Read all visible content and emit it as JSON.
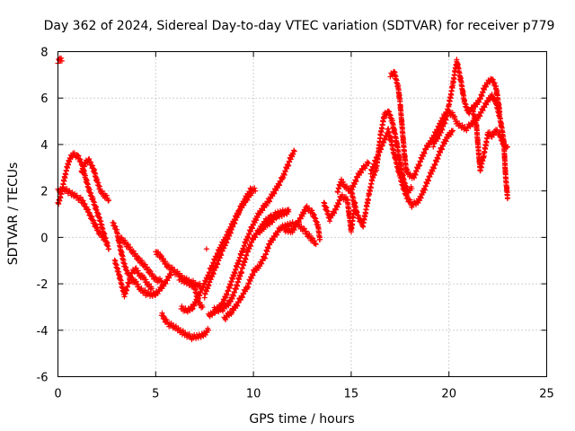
{
  "chart_data": {
    "type": "scatter",
    "title": "Day 362 of 2024, Sidereal Day-to-day VTEC variation (SDTVAR) for receiver p779",
    "xlabel": "GPS time / hours",
    "ylabel": "SDTVAR / TECUs",
    "xlim": [
      0,
      25
    ],
    "ylim": [
      -6,
      8
    ],
    "xticks": [
      "0",
      "5",
      "10",
      "15",
      "20",
      "25"
    ],
    "yticks": [
      "-6",
      "-4",
      "-2",
      "0",
      "2",
      "4",
      "6",
      "8"
    ],
    "grid": true,
    "marker": "+",
    "color": "#ff0000",
    "series": [
      {
        "name": "trace-1",
        "points": [
          [
            0.0,
            7.6
          ],
          [
            0.1,
            7.7
          ],
          [
            0.2,
            7.6
          ]
        ]
      },
      {
        "name": "trace-2",
        "points": [
          [
            0.0,
            1.4
          ],
          [
            0.2,
            2.0
          ],
          [
            0.4,
            2.8
          ],
          [
            0.6,
            3.4
          ],
          [
            0.8,
            3.6
          ],
          [
            1.0,
            3.5
          ],
          [
            1.2,
            3.2
          ],
          [
            1.4,
            2.6
          ],
          [
            1.6,
            2.0
          ],
          [
            1.8,
            1.6
          ],
          [
            2.0,
            1.1
          ],
          [
            2.2,
            0.6
          ],
          [
            2.4,
            0.0
          ],
          [
            2.6,
            -0.5
          ]
        ]
      },
      {
        "name": "trace-3",
        "points": [
          [
            0.0,
            2.0
          ],
          [
            0.3,
            2.1
          ],
          [
            0.6,
            1.9
          ],
          [
            0.9,
            1.8
          ],
          [
            1.2,
            1.6
          ],
          [
            1.5,
            1.2
          ],
          [
            1.8,
            0.7
          ],
          [
            2.1,
            0.2
          ],
          [
            2.4,
            -0.1
          ]
        ]
      },
      {
        "name": "trace-4",
        "points": [
          [
            1.2,
            2.8
          ],
          [
            1.4,
            3.2
          ],
          [
            1.6,
            3.3
          ],
          [
            1.8,
            3.0
          ],
          [
            2.0,
            2.4
          ],
          [
            2.2,
            2.0
          ],
          [
            2.4,
            1.8
          ],
          [
            2.6,
            1.6
          ]
        ]
      },
      {
        "name": "trace-5",
        "points": [
          [
            2.8,
            0.6
          ],
          [
            3.0,
            0.3
          ],
          [
            3.2,
            -0.5
          ],
          [
            3.4,
            -1.2
          ],
          [
            3.6,
            -1.6
          ],
          [
            3.8,
            -1.8
          ],
          [
            4.0,
            -2.0
          ],
          [
            4.2,
            -2.2
          ],
          [
            4.5,
            -2.4
          ],
          [
            4.8,
            -2.5
          ],
          [
            5.0,
            -2.4
          ],
          [
            5.3,
            -2.2
          ],
          [
            5.6,
            -1.8
          ],
          [
            5.8,
            -1.5
          ]
        ]
      },
      {
        "name": "trace-6",
        "points": [
          [
            2.9,
            -1.0
          ],
          [
            3.1,
            -1.5
          ],
          [
            3.3,
            -2.2
          ],
          [
            3.4,
            -2.5
          ],
          [
            3.6,
            -2.0
          ],
          [
            3.8,
            -1.5
          ],
          [
            4.0,
            -1.4
          ],
          [
            4.2,
            -1.6
          ],
          [
            4.4,
            -1.8
          ],
          [
            4.6,
            -2.0
          ],
          [
            4.8,
            -2.2
          ]
        ]
      },
      {
        "name": "trace-7",
        "points": [
          [
            3.2,
            0.0
          ],
          [
            3.5,
            -0.3
          ],
          [
            3.8,
            -0.6
          ],
          [
            4.1,
            -0.9
          ],
          [
            4.4,
            -1.2
          ],
          [
            4.7,
            -1.5
          ],
          [
            5.0,
            -1.8
          ],
          [
            5.3,
            -1.9
          ]
        ]
      },
      {
        "name": "trace-8",
        "points": [
          [
            5.0,
            -0.6
          ],
          [
            5.3,
            -0.9
          ],
          [
            5.6,
            -1.2
          ],
          [
            6.0,
            -1.5
          ],
          [
            6.5,
            -1.8
          ],
          [
            7.0,
            -2.0
          ],
          [
            7.3,
            -2.1
          ]
        ]
      },
      {
        "name": "trace-9",
        "points": [
          [
            6.2,
            -1.8
          ],
          [
            6.5,
            -1.9
          ],
          [
            6.8,
            -2.0
          ],
          [
            7.0,
            -2.2
          ],
          [
            7.2,
            -2.8
          ],
          [
            7.4,
            -3.0
          ]
        ]
      },
      {
        "name": "trace-10",
        "points": [
          [
            5.3,
            -3.3
          ],
          [
            5.6,
            -3.7
          ],
          [
            6.0,
            -3.9
          ],
          [
            6.4,
            -4.1
          ],
          [
            6.8,
            -4.3
          ],
          [
            7.1,
            -4.3
          ],
          [
            7.4,
            -4.2
          ],
          [
            7.7,
            -4.0
          ]
        ]
      },
      {
        "name": "trace-11",
        "points": [
          [
            6.3,
            -3.0
          ],
          [
            6.6,
            -3.2
          ],
          [
            6.9,
            -3.0
          ],
          [
            7.2,
            -2.5
          ],
          [
            7.5,
            -2.0
          ],
          [
            7.8,
            -1.4
          ],
          [
            8.1,
            -0.8
          ],
          [
            8.4,
            -0.3
          ],
          [
            8.7,
            0.2
          ],
          [
            9.0,
            0.7
          ],
          [
            9.3,
            1.2
          ],
          [
            9.6,
            1.6
          ],
          [
            9.9,
            1.9
          ]
        ]
      },
      {
        "name": "trace-12",
        "points": [
          [
            7.5,
            -2.5
          ],
          [
            7.8,
            -1.8
          ],
          [
            8.1,
            -1.2
          ],
          [
            8.4,
            -0.6
          ],
          [
            8.7,
            0.0
          ],
          [
            9.0,
            0.6
          ],
          [
            9.3,
            1.2
          ],
          [
            9.6,
            1.7
          ],
          [
            9.9,
            2.1
          ],
          [
            10.1,
            2.0
          ]
        ]
      },
      {
        "name": "trace-13",
        "points": [
          [
            7.7,
            -3.4
          ],
          [
            8.0,
            -3.2
          ],
          [
            8.4,
            -2.9
          ],
          [
            8.7,
            -2.3
          ],
          [
            9.0,
            -1.6
          ],
          [
            9.3,
            -0.9
          ],
          [
            9.6,
            -0.2
          ],
          [
            9.9,
            0.4
          ],
          [
            10.2,
            0.9
          ],
          [
            10.5,
            1.3
          ],
          [
            10.8,
            1.6
          ],
          [
            11.1,
            2.0
          ],
          [
            11.5,
            2.6
          ],
          [
            11.8,
            3.2
          ],
          [
            12.0,
            3.6
          ],
          [
            12.1,
            3.7
          ]
        ]
      },
      {
        "name": "trace-14",
        "points": [
          [
            8.0,
            -3.1
          ],
          [
            8.4,
            -3.1
          ],
          [
            8.8,
            -2.8
          ],
          [
            9.1,
            -2.2
          ],
          [
            9.4,
            -1.4
          ],
          [
            9.7,
            -0.6
          ],
          [
            10.0,
            0.0
          ],
          [
            10.3,
            0.3
          ],
          [
            10.6,
            0.7
          ],
          [
            10.9,
            0.9
          ],
          [
            11.2,
            1.0
          ],
          [
            11.5,
            1.1
          ],
          [
            11.8,
            1.1
          ]
        ]
      },
      {
        "name": "trace-15",
        "points": [
          [
            8.5,
            -3.5
          ],
          [
            8.9,
            -3.2
          ],
          [
            9.3,
            -2.7
          ],
          [
            9.7,
            -2.1
          ],
          [
            10.0,
            -1.5
          ],
          [
            10.3,
            -1.2
          ],
          [
            10.6,
            -0.8
          ],
          [
            10.8,
            -0.3
          ],
          [
            11.1,
            0.1
          ],
          [
            11.4,
            0.4
          ],
          [
            11.7,
            0.5
          ],
          [
            12.0,
            0.6
          ],
          [
            12.3,
            0.5
          ],
          [
            12.6,
            0.3
          ],
          [
            12.9,
            0.0
          ],
          [
            13.2,
            -0.3
          ]
        ]
      },
      {
        "name": "trace-16",
        "points": [
          [
            10.3,
            0.2
          ],
          [
            10.6,
            0.5
          ],
          [
            10.9,
            0.7
          ],
          [
            11.2,
            0.9
          ],
          [
            11.5,
            1.0
          ],
          [
            11.8,
            1.2
          ]
        ]
      },
      {
        "name": "trace-17",
        "points": [
          [
            11.6,
            0.3
          ],
          [
            12.0,
            0.3
          ],
          [
            12.4,
            0.8
          ],
          [
            12.7,
            1.3
          ],
          [
            13.0,
            1.1
          ],
          [
            13.3,
            0.5
          ],
          [
            13.4,
            -0.1
          ]
        ]
      },
      {
        "name": "trace-18",
        "points": [
          [
            13.6,
            1.5
          ],
          [
            13.9,
            0.8
          ],
          [
            14.2,
            1.2
          ],
          [
            14.5,
            1.8
          ],
          [
            14.8,
            1.6
          ],
          [
            15.0,
            0.3
          ],
          [
            15.2,
            1.5
          ]
        ]
      },
      {
        "name": "trace-19",
        "points": [
          [
            14.3,
            2.0
          ],
          [
            14.5,
            2.4
          ],
          [
            14.7,
            2.2
          ],
          [
            15.0,
            2.0
          ],
          [
            15.3,
            2.6
          ],
          [
            15.6,
            3.0
          ],
          [
            15.9,
            3.2
          ]
        ]
      },
      {
        "name": "trace-20",
        "points": [
          [
            15.0,
            2.0
          ],
          [
            15.3,
            1.0
          ],
          [
            15.6,
            0.5
          ],
          [
            15.9,
            1.8
          ],
          [
            16.1,
            2.6
          ],
          [
            16.3,
            3.0
          ],
          [
            16.5,
            4.4
          ],
          [
            16.7,
            5.3
          ],
          [
            16.9,
            5.4
          ],
          [
            17.1,
            5.0
          ],
          [
            17.3,
            4.2
          ],
          [
            17.5,
            3.2
          ],
          [
            17.7,
            2.4
          ],
          [
            17.9,
            2.0
          ],
          [
            18.1,
            2.1
          ]
        ]
      },
      {
        "name": "trace-21",
        "points": [
          [
            16.0,
            2.8
          ],
          [
            16.3,
            3.4
          ],
          [
            16.6,
            4.0
          ],
          [
            16.9,
            4.6
          ],
          [
            17.2,
            3.6
          ],
          [
            17.5,
            2.6
          ],
          [
            17.8,
            1.8
          ],
          [
            18.1,
            1.4
          ],
          [
            18.4,
            1.5
          ],
          [
            18.7,
            2.0
          ],
          [
            19.0,
            2.6
          ],
          [
            19.3,
            3.2
          ],
          [
            19.6,
            3.8
          ],
          [
            19.9,
            4.3
          ],
          [
            20.2,
            4.6
          ]
        ]
      },
      {
        "name": "trace-22",
        "points": [
          [
            17.0,
            7.0
          ],
          [
            17.2,
            7.1
          ],
          [
            17.4,
            6.5
          ],
          [
            17.5,
            5.8
          ],
          [
            17.6,
            4.8
          ],
          [
            17.7,
            3.8
          ],
          [
            17.8,
            3.0
          ],
          [
            17.9,
            2.7
          ],
          [
            18.2,
            2.6
          ],
          [
            18.5,
            3.2
          ],
          [
            18.8,
            3.8
          ],
          [
            19.1,
            4.2
          ],
          [
            19.4,
            4.6
          ],
          [
            19.7,
            5.2
          ],
          [
            20.0,
            5.4
          ],
          [
            20.3,
            5.2
          ]
        ]
      },
      {
        "name": "trace-23",
        "points": [
          [
            19.2,
            4.0
          ],
          [
            19.5,
            4.4
          ],
          [
            19.8,
            5.0
          ],
          [
            20.0,
            5.7
          ],
          [
            20.2,
            6.6
          ],
          [
            20.4,
            7.6
          ],
          [
            20.6,
            6.8
          ],
          [
            20.8,
            5.8
          ],
          [
            21.0,
            5.4
          ],
          [
            21.3,
            5.6
          ],
          [
            21.6,
            6.0
          ],
          [
            21.9,
            6.6
          ],
          [
            22.2,
            6.8
          ],
          [
            22.4,
            6.5
          ],
          [
            22.6,
            5.4
          ]
        ]
      },
      {
        "name": "trace-24",
        "points": [
          [
            20.3,
            5.0
          ],
          [
            20.6,
            4.8
          ],
          [
            20.9,
            4.7
          ],
          [
            21.2,
            4.9
          ],
          [
            21.5,
            5.2
          ],
          [
            21.8,
            5.6
          ],
          [
            22.0,
            5.9
          ],
          [
            22.2,
            6.1
          ],
          [
            22.4,
            5.8
          ],
          [
            22.6,
            5.2
          ],
          [
            22.8,
            4.2
          ],
          [
            22.9,
            2.6
          ],
          [
            23.0,
            1.7
          ]
        ]
      },
      {
        "name": "trace-25",
        "points": [
          [
            21.2,
            5.5
          ],
          [
            21.4,
            4.9
          ],
          [
            21.5,
            3.8
          ],
          [
            21.6,
            2.9
          ],
          [
            21.8,
            3.6
          ],
          [
            22.0,
            4.5
          ],
          [
            22.2,
            4.4
          ],
          [
            22.4,
            4.6
          ],
          [
            22.6,
            4.4
          ],
          [
            22.8,
            4.0
          ],
          [
            23.0,
            3.9
          ]
        ]
      },
      {
        "name": "trace-26",
        "points": [
          [
            7.6,
            -0.5
          ]
        ]
      }
    ]
  }
}
